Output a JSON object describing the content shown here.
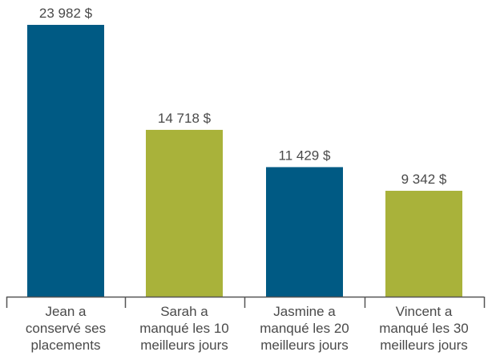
{
  "chart_data": {
    "type": "bar",
    "title": "",
    "xlabel": "",
    "ylabel": "",
    "ylim": [
      0,
      25000
    ],
    "grid": false,
    "categories": [
      [
        "Jean a",
        "conservé ses",
        "placements"
      ],
      [
        "Sarah a",
        "manqué les 10",
        "meilleurs jours"
      ],
      [
        "Jasmine a",
        "manqué les 20",
        "meilleurs jours"
      ],
      [
        "Vincent a",
        "manqué les 30",
        "meilleurs jours"
      ]
    ],
    "values": [
      23982,
      14718,
      11429,
      9342
    ],
    "value_labels": [
      "23 982 $",
      "14 718 $",
      "11 429 $",
      "9 342 $"
    ],
    "colors": [
      "#005a84",
      "#a9b23a",
      "#005a84",
      "#a9b23a"
    ],
    "axis_color": "#555555"
  }
}
